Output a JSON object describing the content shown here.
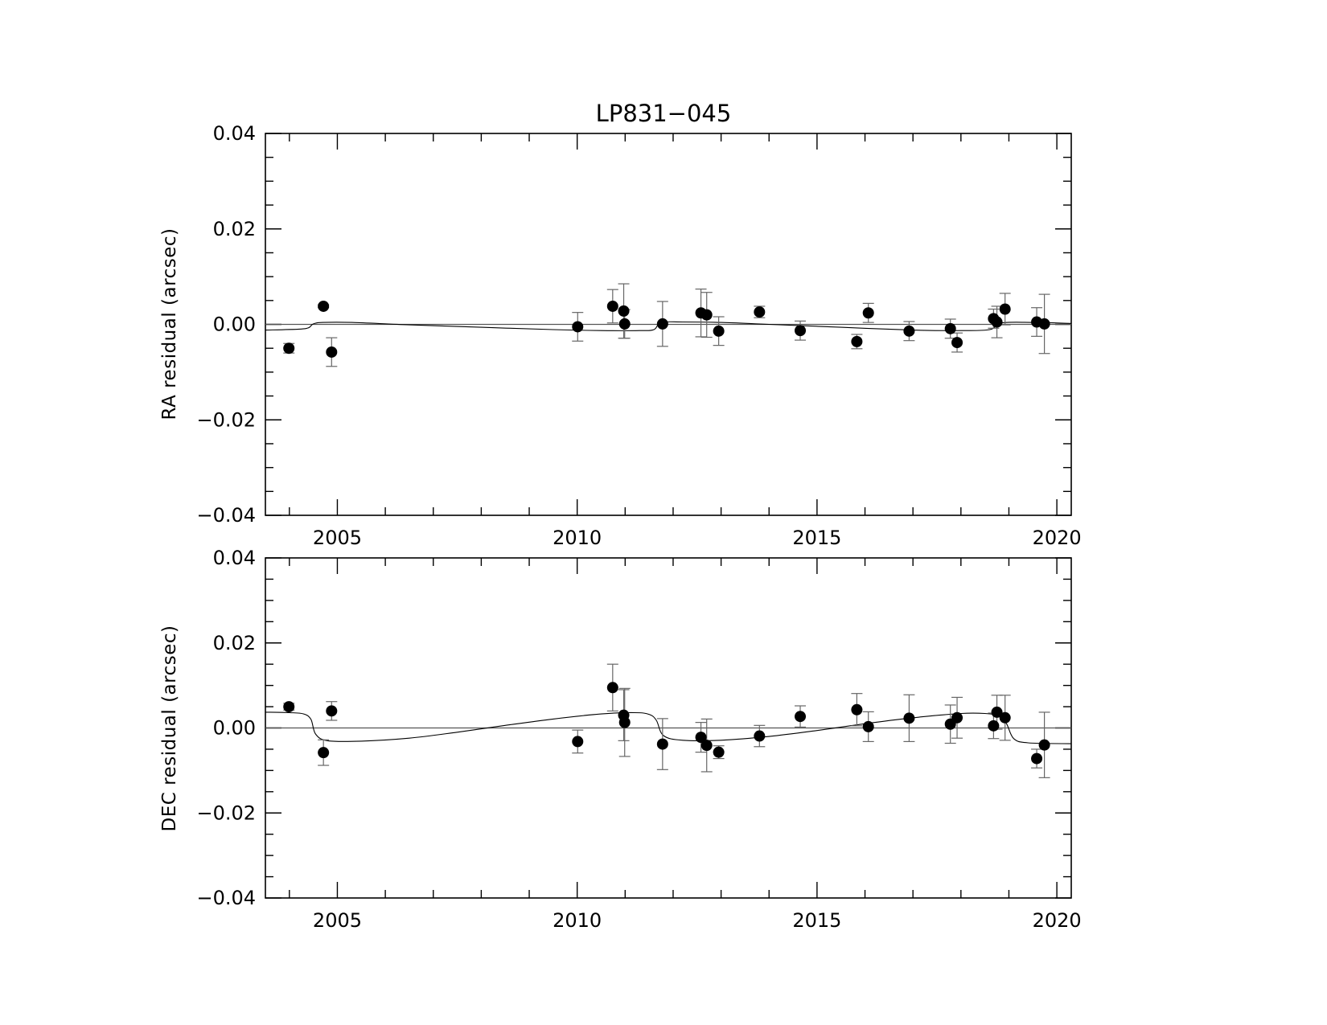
{
  "title": "LP831−045",
  "chart_data": [
    {
      "type": "scatter",
      "ylabel": "RA residual (arcsec)",
      "xlim": [
        2003.5,
        2020.3
      ],
      "ylim": [
        -0.04,
        0.04
      ],
      "xticks": [
        2005,
        2010,
        2015,
        2020
      ],
      "xticklabels": [
        "2005",
        "2010",
        "2015",
        "2020"
      ],
      "yticks": [
        0.04,
        0.02,
        0.0,
        -0.02,
        -0.04
      ],
      "yticklabels": [
        "0.04",
        "0.02",
        "0.00",
        "−0.02",
        "−0.04"
      ],
      "zero_line": 0.0,
      "points": [
        {
          "x": 2003.99,
          "y": -0.005,
          "err": 0.001
        },
        {
          "x": 2004.71,
          "y": 0.0038,
          "err": 0.0003
        },
        {
          "x": 2004.88,
          "y": -0.0058,
          "err": 0.003
        },
        {
          "x": 2010.01,
          "y": -0.0005,
          "err": 0.003
        },
        {
          "x": 2010.74,
          "y": 0.0038,
          "err": 0.0035
        },
        {
          "x": 2010.97,
          "y": 0.0028,
          "err": 0.0057
        },
        {
          "x": 2010.99,
          "y": 0.0001,
          "err": 0.003
        },
        {
          "x": 2011.78,
          "y": 0.0001,
          "err": 0.0047
        },
        {
          "x": 2012.58,
          "y": 0.0024,
          "err": 0.005
        },
        {
          "x": 2012.7,
          "y": 0.002,
          "err": 0.0047
        },
        {
          "x": 2012.95,
          "y": -0.0014,
          "err": 0.003
        },
        {
          "x": 2013.8,
          "y": 0.0026,
          "err": 0.0012
        },
        {
          "x": 2014.65,
          "y": -0.0013,
          "err": 0.002
        },
        {
          "x": 2015.83,
          "y": -0.0036,
          "err": 0.0015
        },
        {
          "x": 2016.07,
          "y": 0.0024,
          "err": 0.002
        },
        {
          "x": 2016.92,
          "y": -0.0014,
          "err": 0.002
        },
        {
          "x": 2017.78,
          "y": -0.0009,
          "err": 0.002
        },
        {
          "x": 2017.92,
          "y": -0.0038,
          "err": 0.002
        },
        {
          "x": 2018.68,
          "y": 0.0012,
          "err": 0.002
        },
        {
          "x": 2018.75,
          "y": 0.0005,
          "err": 0.0033
        },
        {
          "x": 2018.92,
          "y": 0.0032,
          "err": 0.0033
        },
        {
          "x": 2019.58,
          "y": 0.0005,
          "err": 0.003
        },
        {
          "x": 2019.74,
          "y": 0.0001,
          "err": 0.0062
        }
      ],
      "model_curve": [
        [
          2003.5,
          -0.0012
        ],
        [
          2004.2,
          -0.001
        ],
        [
          2004.4,
          -0.0007
        ],
        [
          2004.5,
          0.0001
        ],
        [
          2004.7,
          0.0004
        ],
        [
          2005.3,
          0.0004
        ],
        [
          2006.5,
          -0.0001
        ],
        [
          2008.0,
          -0.0006
        ],
        [
          2009.5,
          -0.0011
        ],
        [
          2010.5,
          -0.0013
        ],
        [
          2011.3,
          -0.0013
        ],
        [
          2011.6,
          -0.0011
        ],
        [
          2011.75,
          0.0004
        ],
        [
          2012.2,
          0.0005
        ],
        [
          2013.0,
          0.0004
        ],
        [
          2014.0,
          0.0
        ],
        [
          2015.5,
          -0.0006
        ],
        [
          2017.0,
          -0.0012
        ],
        [
          2018.0,
          -0.0013
        ],
        [
          2018.6,
          -0.0011
        ],
        [
          2018.85,
          0.0003
        ],
        [
          2019.5,
          0.0004
        ],
        [
          2020.3,
          0.0002
        ]
      ]
    },
    {
      "type": "scatter",
      "ylabel": "DEC residual (arcsec)",
      "xlim": [
        2003.5,
        2020.3
      ],
      "ylim": [
        -0.04,
        0.04
      ],
      "xticks": [
        2005,
        2010,
        2015,
        2020
      ],
      "xticklabels": [
        "2005",
        "2010",
        "2015",
        "2020"
      ],
      "yticks": [
        0.04,
        0.02,
        0.0,
        -0.02,
        -0.04
      ],
      "yticklabels": [
        "0.04",
        "0.02",
        "0.00",
        "−0.02",
        "−0.04"
      ],
      "zero_line": 0.0,
      "points": [
        {
          "x": 2003.99,
          "y": 0.005,
          "err": 0.0008
        },
        {
          "x": 2004.71,
          "y": -0.0058,
          "err": 0.003
        },
        {
          "x": 2004.88,
          "y": 0.004,
          "err": 0.0022
        },
        {
          "x": 2010.01,
          "y": -0.0032,
          "err": 0.0027
        },
        {
          "x": 2010.74,
          "y": 0.0095,
          "err": 0.0055
        },
        {
          "x": 2010.97,
          "y": 0.003,
          "err": 0.006
        },
        {
          "x": 2010.99,
          "y": 0.0013,
          "err": 0.008
        },
        {
          "x": 2011.78,
          "y": -0.0038,
          "err": 0.006
        },
        {
          "x": 2012.58,
          "y": -0.0022,
          "err": 0.0035
        },
        {
          "x": 2012.7,
          "y": -0.0041,
          "err": 0.0062
        },
        {
          "x": 2012.95,
          "y": -0.0057,
          "err": 0.0015
        },
        {
          "x": 2013.8,
          "y": -0.0019,
          "err": 0.0025
        },
        {
          "x": 2014.65,
          "y": 0.0027,
          "err": 0.0025
        },
        {
          "x": 2015.83,
          "y": 0.0043,
          "err": 0.0038
        },
        {
          "x": 2016.07,
          "y": 0.0003,
          "err": 0.0035
        },
        {
          "x": 2016.92,
          "y": 0.0023,
          "err": 0.0055
        },
        {
          "x": 2017.78,
          "y": 0.0009,
          "err": 0.0045
        },
        {
          "x": 2017.92,
          "y": 0.0024,
          "err": 0.0048
        },
        {
          "x": 2018.68,
          "y": 0.0005,
          "err": 0.003
        },
        {
          "x": 2018.75,
          "y": 0.0037,
          "err": 0.004
        },
        {
          "x": 2018.92,
          "y": 0.0024,
          "err": 0.0053
        },
        {
          "x": 2019.58,
          "y": -0.0072,
          "err": 0.0022
        },
        {
          "x": 2019.74,
          "y": -0.004,
          "err": 0.0077
        }
      ],
      "model_curve": [
        [
          2003.5,
          0.0037
        ],
        [
          2004.0,
          0.0036
        ],
        [
          2004.3,
          0.0033
        ],
        [
          2004.45,
          0.002
        ],
        [
          2004.55,
          -0.0015
        ],
        [
          2004.8,
          -0.003
        ],
        [
          2005.5,
          -0.0031
        ],
        [
          2006.5,
          -0.0024
        ],
        [
          2007.5,
          -0.001
        ],
        [
          2008.5,
          0.0006
        ],
        [
          2009.5,
          0.0021
        ],
        [
          2010.5,
          0.0033
        ],
        [
          2011.2,
          0.0036
        ],
        [
          2011.5,
          0.0032
        ],
        [
          2011.65,
          0.0018
        ],
        [
          2011.8,
          -0.0018
        ],
        [
          2012.2,
          -0.0029
        ],
        [
          2013.0,
          -0.0029
        ],
        [
          2014.0,
          -0.002
        ],
        [
          2015.0,
          -0.0006
        ],
        [
          2016.0,
          0.001
        ],
        [
          2017.0,
          0.0024
        ],
        [
          2018.0,
          0.0034
        ],
        [
          2018.5,
          0.0034
        ],
        [
          2018.8,
          0.0028
        ],
        [
          2018.95,
          0.001
        ],
        [
          2019.1,
          -0.0025
        ],
        [
          2019.4,
          -0.0035
        ],
        [
          2020.3,
          -0.0037
        ]
      ]
    }
  ]
}
